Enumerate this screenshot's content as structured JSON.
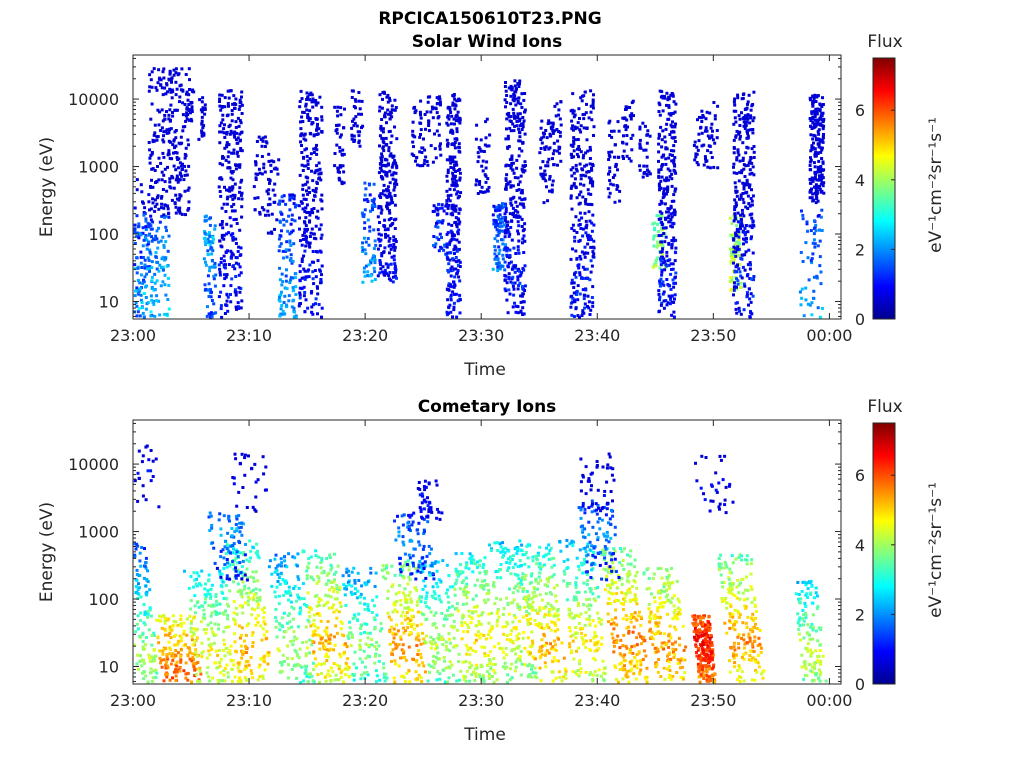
{
  "figure": {
    "title": "RPCICA150610T23.PNG"
  },
  "chart_data": [
    {
      "type": "heatmap",
      "title": "Solar Wind Ions",
      "xlabel": "Time",
      "ylabel": "Energy (eV)",
      "xticks": [
        "23:00",
        "23:10",
        "23:20",
        "23:30",
        "23:40",
        "23:50",
        "00:00"
      ],
      "xlim_minutes": [
        0,
        61
      ],
      "yscale": "log",
      "yticks": [
        "10",
        "100",
        "1000",
        "10000"
      ],
      "ylim": [
        5.5,
        45000
      ],
      "colorbar": {
        "title": "Flux",
        "label": "eV⁻¹cm⁻²sr⁻¹s⁻¹",
        "range": [
          0,
          7.5
        ],
        "ticks": [
          "0",
          "2",
          "4",
          "6"
        ]
      },
      "colormap": "jet",
      "series": [
        {
          "name": "",
          "values": [
            [
              0.3,
              7,
              2.5,
              4,
              700,
              2.4,
              120
            ],
            [
              1.4,
              2.5,
              3.2,
              5,
              200,
              3.2,
              150
            ],
            [
              3.0,
              10,
              3.5,
              200,
              30000,
              1.2,
              260
            ],
            [
              4.8,
              5,
              0.6,
              5000,
              15000,
              1.2,
              25
            ],
            [
              5.8,
              5,
              0.6,
              2000,
              12000,
              1.2,
              25
            ],
            [
              6.5,
              100,
              1.0,
              6,
              200,
              2.6,
              80
            ],
            [
              8.3,
              20,
              2.0,
              6,
              14000,
              1.5,
              260
            ],
            [
              11.0,
              5,
              1.4,
              150,
              3000,
              1.2,
              45
            ],
            [
              12.0,
              5,
              1.0,
              100,
              1500,
              1.4,
              25
            ],
            [
              13.2,
              10,
              1.5,
              5,
              400,
              2.6,
              120
            ],
            [
              15.2,
              20,
              2.0,
              6,
              14000,
              1.5,
              260
            ],
            [
              17.7,
              5,
              1.0,
              500,
              8000,
              1.2,
              40
            ],
            [
              19.2,
              5,
              1.0,
              2000,
              15000,
              1.2,
              35
            ],
            [
              20.2,
              10,
              1.2,
              20,
              600,
              2.8,
              70
            ],
            [
              21.8,
              10,
              1.6,
              20,
              14000,
              1.6,
              240
            ],
            [
              24.5,
              5,
              1.2,
              1000,
              10000,
              1.2,
              40
            ],
            [
              25.8,
              5,
              1.2,
              1000,
              12000,
              1.2,
              40
            ],
            [
              26.3,
              8,
              1.2,
              50,
              300,
              2.4,
              40
            ],
            [
              27.5,
              20,
              1.2,
              6,
              14000,
              1.6,
              260
            ],
            [
              30.0,
              5,
              1.2,
              400,
              6000,
              1.2,
              40
            ],
            [
              31.5,
              10,
              1.2,
              30,
              300,
              2.6,
              100
            ],
            [
              32.8,
              20,
              1.8,
              6,
              20000,
              1.6,
              300
            ],
            [
              35.5,
              5,
              1.2,
              300,
              5000,
              1.2,
              45
            ],
            [
              36.2,
              5,
              1.2,
              1000,
              10000,
              1.2,
              40
            ],
            [
              38.6,
              20,
              2.0,
              6,
              14000,
              1.6,
              260
            ],
            [
              41.3,
              5,
              1.0,
              300,
              5000,
              1.2,
              40
            ],
            [
              42.5,
              5,
              1.0,
              1000,
              10000,
              1.2,
              35
            ],
            [
              44.0,
              5,
              1.0,
              700,
              5000,
              1.2,
              30
            ],
            [
              45.2,
              20,
              1.2,
              30,
              200,
              4.6,
              50
            ],
            [
              45.9,
              20,
              1.5,
              6,
              14000,
              1.6,
              260
            ],
            [
              48.8,
              5,
              1.2,
              1000,
              8000,
              1.2,
              35
            ],
            [
              49.8,
              5,
              1.0,
              1000,
              10000,
              1.2,
              25
            ],
            [
              51.8,
              30,
              1.0,
              15,
              200,
              4.8,
              70
            ],
            [
              52.5,
              20,
              1.8,
              6,
              14000,
              1.6,
              280
            ],
            [
              58.3,
              5,
              2.0,
              6,
              300,
              2.8,
              60
            ],
            [
              58.8,
              10,
              1.2,
              300,
              12000,
              1.3,
              200
            ]
          ]
        }
      ]
    },
    {
      "type": "heatmap",
      "title": "Cometary Ions",
      "xlabel": "Time",
      "ylabel": "Energy (eV)",
      "xticks": [
        "23:00",
        "23:10",
        "23:20",
        "23:30",
        "23:40",
        "23:50",
        "00:00"
      ],
      "xlim_minutes": [
        0,
        61
      ],
      "yscale": "log",
      "yticks": [
        "10",
        "100",
        "1000",
        "10000"
      ],
      "ylim": [
        5.5,
        45000
      ],
      "colorbar": {
        "title": "Flux",
        "label": "eV⁻¹cm⁻²sr⁻¹s⁻¹",
        "range": [
          0,
          7.5
        ],
        "ticks": [
          "0",
          "2",
          "4",
          "6"
        ]
      },
      "colormap": "jet",
      "series": [
        {
          "name": "",
          "values": [
            [
              0.4,
              15,
              3.0,
              6,
              700,
              4.6,
              220
            ],
            [
              4.0,
              8,
              3.5,
              6,
              60,
              6.4,
              160
            ],
            [
              6.8,
              15,
              3.5,
              6,
              300,
              5.2,
              180
            ],
            [
              10.1,
              20,
              3.0,
              6,
              800,
              5.8,
              200
            ],
            [
              13.8,
              20,
              3.0,
              6,
              500,
              4.6,
              160
            ],
            [
              16.8,
              25,
              3.0,
              6,
              600,
              5.8,
              200
            ],
            [
              20.0,
              20,
              3.0,
              6,
              300,
              4.4,
              140
            ],
            [
              23.5,
              20,
              3.0,
              6,
              400,
              6.0,
              180
            ],
            [
              26.5,
              20,
              3.0,
              6,
              400,
              4.8,
              160
            ],
            [
              29.5,
              25,
              3.0,
              6,
              500,
              5.4,
              200
            ],
            [
              32.8,
              30,
              3.0,
              6,
              800,
              5.2,
              200
            ],
            [
              35.5,
              20,
              3.0,
              6,
              700,
              5.8,
              200
            ],
            [
              39.0,
              20,
              3.0,
              6,
              800,
              5.4,
              180
            ],
            [
              42.5,
              25,
              3.0,
              6,
              600,
              6.2,
              220
            ],
            [
              46.0,
              20,
              3.0,
              6,
              300,
              6.0,
              180
            ],
            [
              49.0,
              25,
              1.5,
              6,
              60,
              7.0,
              220
            ],
            [
              52.5,
              25,
              3.0,
              6,
              500,
              6.0,
              200
            ],
            [
              58.4,
              15,
              2.0,
              6,
              200,
              4.8,
              120
            ],
            [
              8.0,
              1000,
              3.0,
              200,
              2000,
              2.6,
              80
            ],
            [
              24.0,
              800,
              3.0,
              200,
              2000,
              2.4,
              80
            ],
            [
              40.0,
              1000,
              3.0,
              200,
              3000,
              2.5,
              90
            ],
            [
              0.5,
              8000,
              3.0,
              2000,
              20000,
              1.3,
              40
            ],
            [
              10.0,
              5000,
              3.0,
              2000,
              15000,
              1.3,
              30
            ],
            [
              25.5,
              3000,
              2.0,
              1500,
              6000,
              1.4,
              40
            ],
            [
              40.0,
              4000,
              3.0,
              2000,
              15000,
              1.3,
              40
            ],
            [
              50.0,
              4000,
              3.0,
              2000,
              15000,
              1.3,
              30
            ]
          ]
        }
      ]
    }
  ]
}
